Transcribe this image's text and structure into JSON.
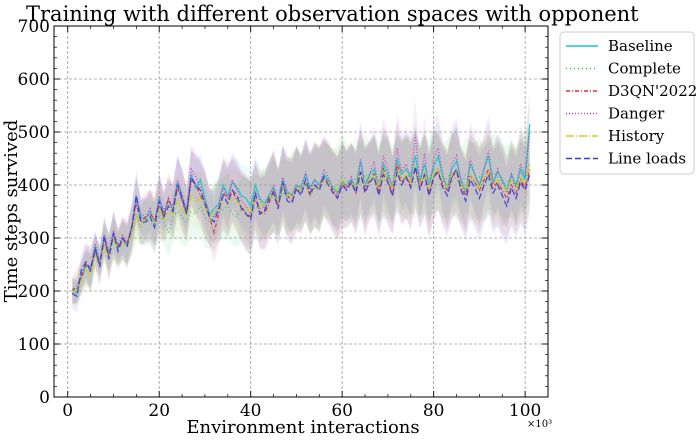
{
  "chart_data": {
    "type": "line",
    "title": "Training with different observation spaces with opponent",
    "xlabel": "Environment interactions",
    "ylabel": "Time steps survived",
    "x_multiplier": "×10³",
    "xlim": [
      -3,
      105
    ],
    "ylim": [
      0,
      700
    ],
    "xticks": [
      0,
      20,
      40,
      60,
      80,
      100
    ],
    "yticks": [
      0,
      100,
      200,
      300,
      400,
      500,
      600,
      700
    ],
    "grid": true,
    "legend_position": "outside-right-top",
    "x": [
      1,
      2,
      3,
      4,
      5,
      6,
      7,
      8,
      9,
      10,
      11,
      12,
      13,
      14,
      15,
      16,
      17,
      18,
      19,
      20,
      21,
      22,
      23,
      24,
      25,
      26,
      27,
      28,
      29,
      30,
      31,
      32,
      33,
      34,
      35,
      36,
      37,
      38,
      39,
      40,
      41,
      42,
      43,
      44,
      45,
      46,
      47,
      48,
      49,
      50,
      51,
      52,
      53,
      54,
      55,
      56,
      57,
      58,
      59,
      60,
      61,
      62,
      63,
      64,
      65,
      66,
      67,
      68,
      69,
      70,
      71,
      72,
      73,
      74,
      75,
      76,
      77,
      78,
      79,
      80,
      81,
      82,
      83,
      84,
      85,
      86,
      87,
      88,
      89,
      90,
      91,
      92,
      93,
      94,
      95,
      96,
      97,
      98,
      99,
      100,
      101
    ],
    "series": [
      {
        "name": "Baseline",
        "color": "#17c8c8",
        "dash": "solid",
        "values": [
          205,
          195,
          230,
          250,
          240,
          285,
          255,
          300,
          270,
          310,
          280,
          300,
          285,
          320,
          380,
          340,
          335,
          350,
          330,
          375,
          345,
          370,
          355,
          405,
          380,
          350,
          420,
          395,
          410,
          375,
          345,
          355,
          365,
          400,
          380,
          405,
          395,
          380,
          375,
          360,
          400,
          375,
          365,
          380,
          395,
          370,
          410,
          385,
          380,
          400,
          395,
          420,
          395,
          410,
          400,
          420,
          410,
          395,
          385,
          405,
          400,
          410,
          395,
          445,
          400,
          420,
          430,
          395,
          440,
          420,
          395,
          450,
          420,
          430,
          415,
          455,
          405,
          440,
          400,
          435,
          455,
          415,
          395,
          430,
          445,
          410,
          385,
          440,
          420,
          400,
          430,
          455,
          405,
          425,
          410,
          390,
          420,
          400,
          430,
          410,
          515
        ]
      },
      {
        "name": "Complete",
        "color": "#22cc55",
        "dash": "1,3",
        "values": [
          200,
          205,
          225,
          245,
          235,
          270,
          260,
          290,
          275,
          300,
          285,
          295,
          290,
          310,
          345,
          320,
          335,
          330,
          320,
          345,
          330,
          310,
          340,
          350,
          340,
          330,
          350,
          345,
          360,
          340,
          330,
          345,
          350,
          355,
          360,
          345,
          340,
          355,
          350,
          340,
          360,
          355,
          365,
          370,
          380,
          370,
          385,
          375,
          390,
          395,
          385,
          400,
          380,
          395,
          390,
          410,
          405,
          395,
          400,
          420,
          410,
          400,
          415,
          405,
          420,
          410,
          425,
          405,
          410,
          415,
          400,
          420,
          415,
          410,
          425,
          405,
          415,
          420,
          410,
          430,
          420,
          405,
          415,
          425,
          410,
          400,
          420,
          410,
          405,
          415,
          400,
          410,
          425,
          415,
          400,
          405,
          410,
          395,
          420,
          430,
          440
        ]
      },
      {
        "name": "D3QN'2022",
        "color": "#e03030",
        "dash": "4,2,1,2",
        "values": [
          200,
          210,
          225,
          250,
          245,
          275,
          250,
          300,
          265,
          305,
          285,
          300,
          290,
          320,
          365,
          330,
          340,
          345,
          335,
          360,
          340,
          375,
          350,
          395,
          370,
          345,
          410,
          400,
          380,
          365,
          340,
          310,
          345,
          385,
          375,
          390,
          370,
          360,
          345,
          340,
          375,
          350,
          345,
          365,
          390,
          360,
          400,
          380,
          370,
          390,
          385,
          405,
          380,
          400,
          395,
          415,
          405,
          390,
          375,
          400,
          395,
          405,
          385,
          425,
          390,
          410,
          420,
          385,
          430,
          410,
          380,
          440,
          405,
          415,
          400,
          430,
          395,
          420,
          380,
          415,
          430,
          400,
          390,
          415,
          425,
          395,
          380,
          420,
          405,
          390,
          410,
          430,
          395,
          405,
          390,
          375,
          400,
          385,
          410,
          395,
          430
        ]
      },
      {
        "name": "Danger",
        "color": "#d030d0",
        "dash": "1,2",
        "values": [
          195,
          200,
          230,
          255,
          235,
          290,
          255,
          305,
          275,
          315,
          285,
          305,
          290,
          325,
          370,
          345,
          340,
          355,
          325,
          380,
          350,
          375,
          360,
          410,
          380,
          355,
          430,
          415,
          395,
          370,
          345,
          340,
          360,
          395,
          375,
          410,
          390,
          370,
          360,
          345,
          390,
          370,
          355,
          380,
          400,
          365,
          415,
          390,
          380,
          400,
          390,
          425,
          390,
          410,
          395,
          430,
          415,
          390,
          380,
          410,
          395,
          415,
          390,
          450,
          395,
          420,
          445,
          390,
          455,
          430,
          390,
          470,
          425,
          440,
          410,
          495,
          400,
          460,
          385,
          450,
          470,
          420,
          390,
          440,
          455,
          405,
          380,
          450,
          420,
          395,
          430,
          465,
          400,
          430,
          405,
          385,
          420,
          395,
          440,
          415,
          500
        ]
      },
      {
        "name": "History",
        "color": "#c8d020",
        "dash": "8,2,1,2",
        "values": [
          200,
          200,
          220,
          240,
          230,
          265,
          255,
          285,
          265,
          295,
          280,
          290,
          285,
          305,
          340,
          325,
          330,
          340,
          330,
          355,
          335,
          350,
          345,
          370,
          355,
          340,
          380,
          370,
          375,
          355,
          340,
          350,
          355,
          370,
          365,
          375,
          370,
          360,
          355,
          350,
          375,
          360,
          365,
          375,
          385,
          370,
          395,
          380,
          385,
          395,
          390,
          405,
          385,
          400,
          395,
          410,
          405,
          395,
          390,
          410,
          400,
          405,
          395,
          420,
          400,
          410,
          420,
          395,
          425,
          410,
          395,
          430,
          410,
          420,
          405,
          435,
          400,
          425,
          395,
          420,
          430,
          405,
          395,
          420,
          430,
          400,
          390,
          420,
          410,
          395,
          415,
          425,
          400,
          410,
          400,
          390,
          410,
          395,
          415,
          405,
          440
        ]
      },
      {
        "name": "Line loads",
        "color": "#3a3ad8",
        "dash": "6,3",
        "values": [
          195,
          190,
          240,
          255,
          240,
          280,
          245,
          305,
          260,
          310,
          275,
          300,
          285,
          320,
          380,
          330,
          330,
          340,
          320,
          370,
          340,
          360,
          350,
          400,
          375,
          345,
          415,
          400,
          390,
          365,
          340,
          330,
          355,
          380,
          365,
          390,
          380,
          355,
          345,
          335,
          385,
          345,
          350,
          375,
          385,
          355,
          405,
          370,
          365,
          395,
          380,
          410,
          385,
          400,
          390,
          415,
          400,
          385,
          375,
          400,
          390,
          405,
          385,
          425,
          385,
          405,
          415,
          380,
          420,
          405,
          380,
          425,
          400,
          415,
          395,
          435,
          390,
          420,
          380,
          415,
          425,
          395,
          380,
          415,
          430,
          390,
          370,
          410,
          395,
          375,
          400,
          420,
          385,
          400,
          380,
          360,
          395,
          375,
          405,
          390,
          420
        ]
      }
    ]
  }
}
